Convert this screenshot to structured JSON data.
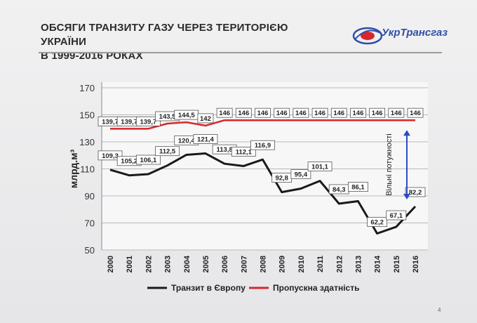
{
  "page": {
    "title_line1": "ОБСЯГИ ТРАНЗИТУ ГАЗУ ЧЕРЕЗ ТЕРИТОРІЄЮ УКРАЇНИ",
    "title_line2": "В 1999-2016 РОКАХ",
    "logo_text": "УкрТрансгаз",
    "page_number": "4"
  },
  "chart_data": {
    "type": "line",
    "title": "ОБСЯГИ ТРАНЗИТУ ГАЗУ ЧЕРЕЗ ТЕРИТОРІЄЮ УКРАЇНИ В 1999-2016 РОКАХ",
    "xlabel": "",
    "ylabel": "млрд.м³",
    "categories": [
      "2000",
      "2001",
      "2002",
      "2003",
      "2004",
      "2005",
      "2006",
      "2007",
      "2008",
      "2009",
      "2010",
      "2011",
      "2012",
      "2013",
      "2014",
      "2015",
      "2016"
    ],
    "ylim": [
      50,
      170
    ],
    "yticks": [
      50,
      70,
      90,
      110,
      130,
      150,
      170
    ],
    "grid": true,
    "legend_position": "bottom",
    "series": [
      {
        "name": "Транзит в Європу",
        "color": "#1a1a1a",
        "values": [
          109.3,
          105.2,
          106.1,
          112.5,
          120.4,
          121.4,
          113.8,
          112.1,
          116.9,
          92.8,
          95.4,
          101.1,
          84.3,
          86.1,
          62.2,
          67.1,
          82.2
        ],
        "labels": [
          "109,3",
          "105,2",
          "106,1",
          "112,5",
          "120,4",
          "121,4",
          "113,8",
          "112,1",
          "116,9",
          "92,8",
          "95,4",
          "101,1",
          "84,3",
          "86,1",
          "62,2",
          "67,1",
          "82,2"
        ]
      },
      {
        "name": "Пропускна здатність",
        "color": "#d9262b",
        "values": [
          139.7,
          139.7,
          139.7,
          143.5,
          144.5,
          142,
          146,
          146,
          146,
          146,
          146,
          146,
          146,
          146,
          146,
          146,
          146
        ],
        "labels": [
          "139,7",
          "139,7",
          "139,7",
          "143,5",
          "144,5",
          "142",
          "146",
          "146",
          "146",
          "146",
          "146",
          "146",
          "146",
          "146",
          "146",
          "146",
          "146"
        ]
      }
    ],
    "annotation": {
      "text": "Вільні потужності",
      "color": "#2b4bbf"
    }
  }
}
